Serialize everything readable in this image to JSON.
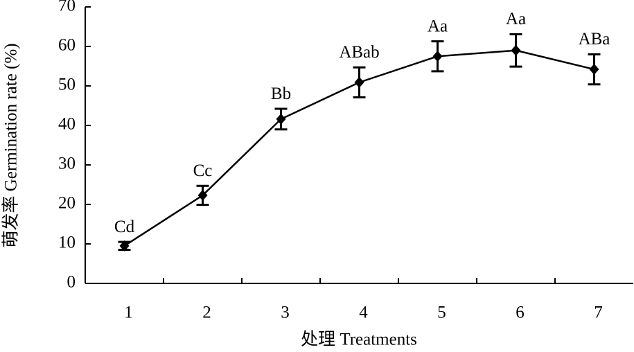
{
  "chart_data": {
    "type": "line",
    "xlabel": "处理 Treatments",
    "ylabel": "萌发率 Germination rate (%)",
    "categories": [
      "1",
      "2",
      "3",
      "4",
      "5",
      "6",
      "7"
    ],
    "series": [
      {
        "color": "#000000",
        "values": [
          9.5,
          22.3,
          41.6,
          50.9,
          57.5,
          59,
          54.2
        ],
        "errors": [
          1,
          2.4,
          2.6,
          3.8,
          3.8,
          4.1,
          3.8
        ],
        "annotations": [
          "Cd",
          "Cc",
          "Bb",
          "ABab",
          "Aa",
          "Aa",
          "ABa"
        ]
      }
    ],
    "ylim": [
      0,
      70
    ],
    "yticks": [
      0,
      10,
      20,
      30,
      40,
      50,
      60,
      70
    ],
    "grid": false
  }
}
